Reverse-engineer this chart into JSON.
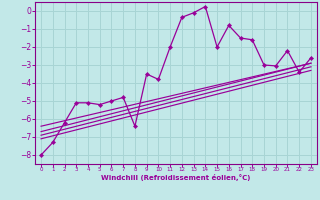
{
  "xlabel": "Windchill (Refroidissement éolien,°C)",
  "bg_color": "#c2e8e8",
  "grid_color": "#a8d4d4",
  "line_color": "#990099",
  "spine_color": "#880088",
  "xlim": [
    -0.5,
    23.5
  ],
  "ylim": [
    -8.5,
    0.5
  ],
  "xticks": [
    0,
    1,
    2,
    3,
    4,
    5,
    6,
    7,
    8,
    9,
    10,
    11,
    12,
    13,
    14,
    15,
    16,
    17,
    18,
    19,
    20,
    21,
    22,
    23
  ],
  "yticks": [
    0,
    -1,
    -2,
    -3,
    -4,
    -5,
    -6,
    -7,
    -8
  ],
  "main_x": [
    0,
    1,
    2,
    3,
    4,
    5,
    6,
    7,
    8,
    9,
    10,
    11,
    12,
    13,
    14,
    15,
    16,
    17,
    18,
    19,
    20,
    21,
    22,
    23
  ],
  "main_y": [
    -8.0,
    -7.3,
    -6.2,
    -5.1,
    -5.1,
    -5.2,
    -5.0,
    -4.8,
    -6.4,
    -3.5,
    -3.8,
    -2.0,
    -0.35,
    -0.1,
    0.25,
    -2.0,
    -0.8,
    -1.5,
    -1.6,
    -3.0,
    -3.05,
    -2.2,
    -3.4,
    -2.6
  ],
  "reg_lines": [
    {
      "x": [
        0,
        23
      ],
      "y": [
        -6.4,
        -2.9
      ]
    },
    {
      "x": [
        0,
        23
      ],
      "y": [
        -6.7,
        -2.9
      ]
    },
    {
      "x": [
        0,
        23
      ],
      "y": [
        -6.9,
        -3.1
      ]
    },
    {
      "x": [
        0,
        23
      ],
      "y": [
        -7.1,
        -3.3
      ]
    }
  ]
}
